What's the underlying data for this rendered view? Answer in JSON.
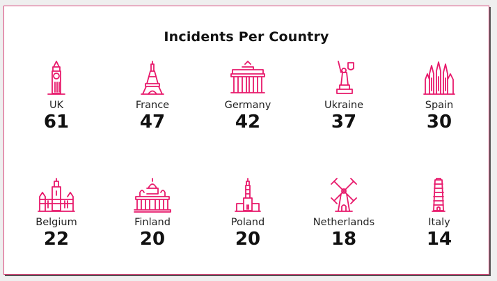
{
  "title": "Incidents Per Country",
  "accent_color": "#e8196b",
  "countries": [
    {
      "name": "UK",
      "value": "61",
      "icon": "big-ben-icon"
    },
    {
      "name": "France",
      "value": "47",
      "icon": "eiffel-tower-icon"
    },
    {
      "name": "Germany",
      "value": "42",
      "icon": "brandenburg-gate-icon"
    },
    {
      "name": "Ukraine",
      "value": "37",
      "icon": "motherland-monument-icon"
    },
    {
      "name": "Spain",
      "value": "30",
      "icon": "sagrada-familia-icon"
    },
    {
      "name": "Belgium",
      "value": "22",
      "icon": "grand-place-icon"
    },
    {
      "name": "Finland",
      "value": "20",
      "icon": "helsinki-cathedral-icon"
    },
    {
      "name": "Poland",
      "value": "20",
      "icon": "palace-of-culture-icon"
    },
    {
      "name": "Netherlands",
      "value": "18",
      "icon": "windmill-icon"
    },
    {
      "name": "Italy",
      "value": "14",
      "icon": "leaning-tower-icon"
    }
  ]
}
